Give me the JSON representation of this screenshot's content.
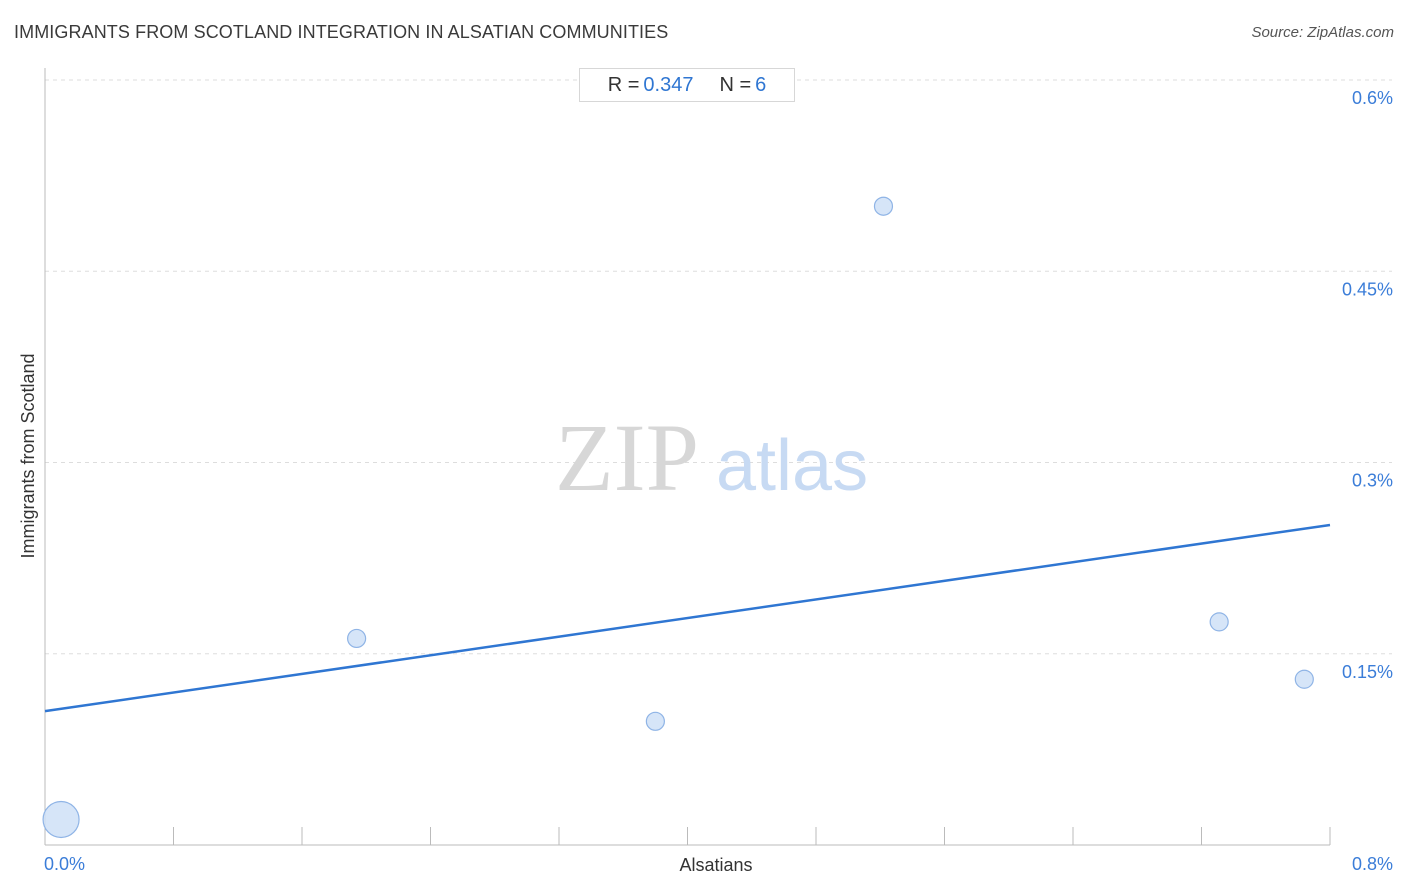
{
  "header": {
    "title": "IMMIGRANTS FROM SCOTLAND INTEGRATION IN ALSATIAN COMMUNITIES",
    "source": "Source: ZipAtlas.com"
  },
  "stats": {
    "r_label": "R =",
    "r_value": "0.347",
    "n_label": "N =",
    "n_value": "6"
  },
  "watermark": {
    "zip": "ZIP",
    "atlas": "atlas"
  },
  "colors": {
    "accent": "#2f76d2",
    "point_fill": "#cfe0f7",
    "point_stroke": "#8fb4e6",
    "grid": "#dddddd"
  },
  "chart_data": {
    "type": "scatter",
    "title": "IMMIGRANTS FROM SCOTLAND INTEGRATION IN ALSATIAN COMMUNITIES",
    "xlabel": "Alsatians",
    "ylabel": "Immigrants from Scotland",
    "xlim": [
      0,
      0.8
    ],
    "ylim": [
      0,
      0.6
    ],
    "x_tick_labels": [
      "0.0%",
      "0.8%"
    ],
    "y_ticks": [
      0.15,
      0.3,
      0.45,
      0.6
    ],
    "y_tick_labels": [
      "0.15%",
      "0.3%",
      "0.45%",
      "0.6%"
    ],
    "grid": "horizontal dashed",
    "points": [
      {
        "x": 0.01,
        "y": 0.02,
        "size": "large"
      },
      {
        "x": 0.194,
        "y": 0.162,
        "size": "small"
      },
      {
        "x": 0.38,
        "y": 0.097,
        "size": "small"
      },
      {
        "x": 0.522,
        "y": 0.501,
        "size": "small"
      },
      {
        "x": 0.731,
        "y": 0.175,
        "size": "small"
      },
      {
        "x": 0.784,
        "y": 0.13,
        "size": "small"
      }
    ],
    "trendline": {
      "x": [
        0,
        0.8
      ],
      "y": [
        0.105,
        0.251
      ]
    }
  }
}
